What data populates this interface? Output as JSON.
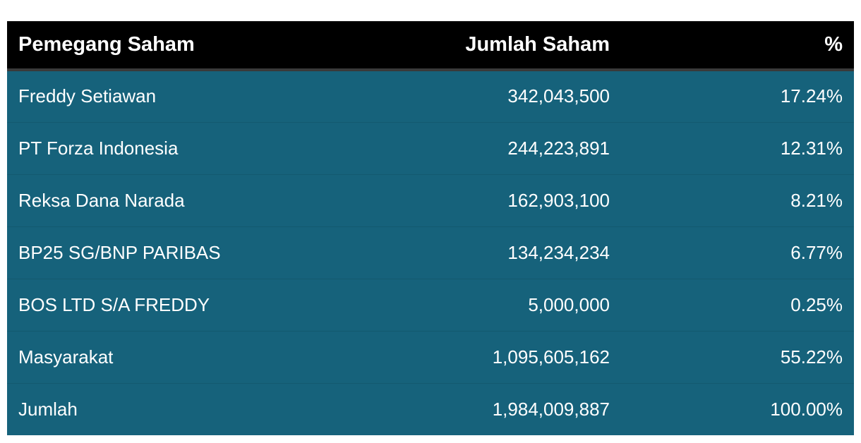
{
  "table": {
    "headers": [
      "Pemegang Saham",
      "Jumlah Saham",
      "%"
    ],
    "rows": [
      [
        "Freddy Setiawan",
        "342,043,500",
        "17.24%"
      ],
      [
        "PT Forza Indonesia",
        "244,223,891",
        "12.31%"
      ],
      [
        "Reksa Dana Narada",
        "162,903,100",
        "8.21%"
      ],
      [
        "BP25 SG/BNP PARIBAS",
        "134,234,234",
        "6.77%"
      ],
      [
        "BOS LTD S/A FREDDY",
        "5,000,000",
        "0.25%"
      ],
      [
        "Masyarakat",
        "1,095,605,162",
        "55.22%"
      ],
      [
        "Jumlah",
        "1,984,009,887",
        "100.00%"
      ]
    ]
  },
  "colors": {
    "header_bg": "#000000",
    "row_bg": "#16627b",
    "text": "#ffffff"
  }
}
